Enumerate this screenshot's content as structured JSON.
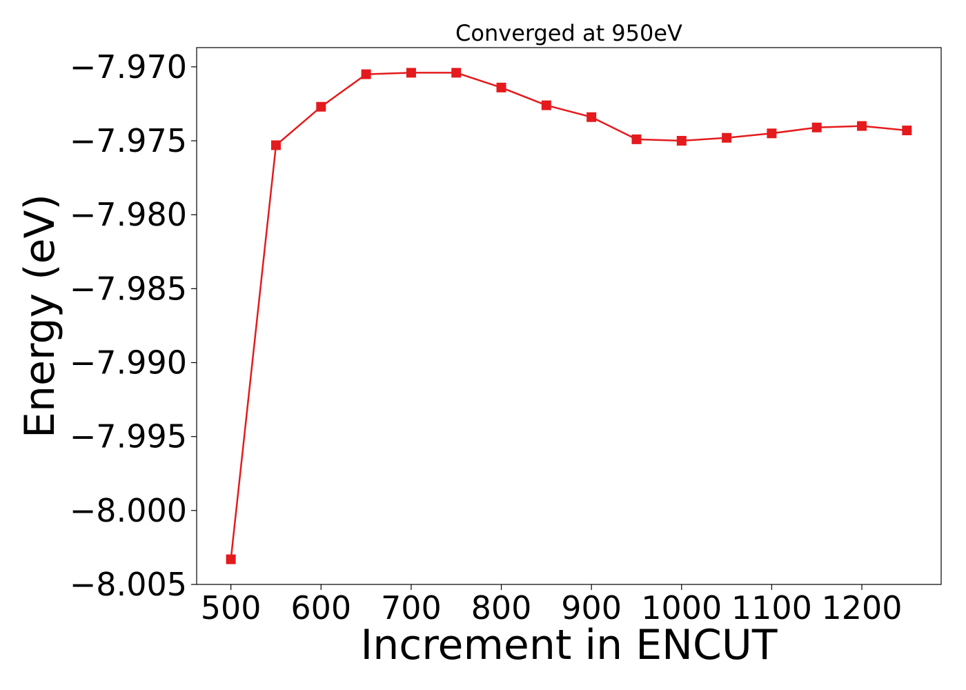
{
  "chart_data": {
    "type": "line",
    "title": "Converged at 950eV",
    "xlabel": "Increment in ENCUT",
    "ylabel": "Energy (eV)",
    "x": [
      500,
      550,
      600,
      650,
      700,
      750,
      800,
      850,
      900,
      950,
      1000,
      1050,
      1100,
      1150,
      1200,
      1250
    ],
    "series": [
      {
        "values": [
          -8.0033,
          -7.9753,
          -7.9727,
          -7.9705,
          -7.9704,
          -7.9704,
          -7.9714,
          -7.9726,
          -7.9734,
          -7.9749,
          -7.975,
          -7.9748,
          -7.9745,
          -7.9741,
          -7.974,
          -7.9743
        ],
        "color": "#e41a1c",
        "marker": "square"
      }
    ],
    "xlim": [
      462,
      1288
    ],
    "ylim": [
      -8.005,
      -7.9687
    ],
    "xticks": [
      500,
      600,
      700,
      800,
      900,
      1000,
      1100,
      1200
    ],
    "xtick_labels": [
      "500",
      "600",
      "700",
      "800",
      "900",
      "1000",
      "1100",
      "1200"
    ],
    "yticks": [
      -8.005,
      -8.0,
      -7.995,
      -7.99,
      -7.985,
      -7.98,
      -7.975,
      -7.97
    ],
    "ytick_labels": [
      "−8.005",
      "−8.000",
      "−7.995",
      "−7.990",
      "−7.985",
      "−7.980",
      "−7.975",
      "−7.970"
    ],
    "grid": false,
    "legend": "none"
  }
}
